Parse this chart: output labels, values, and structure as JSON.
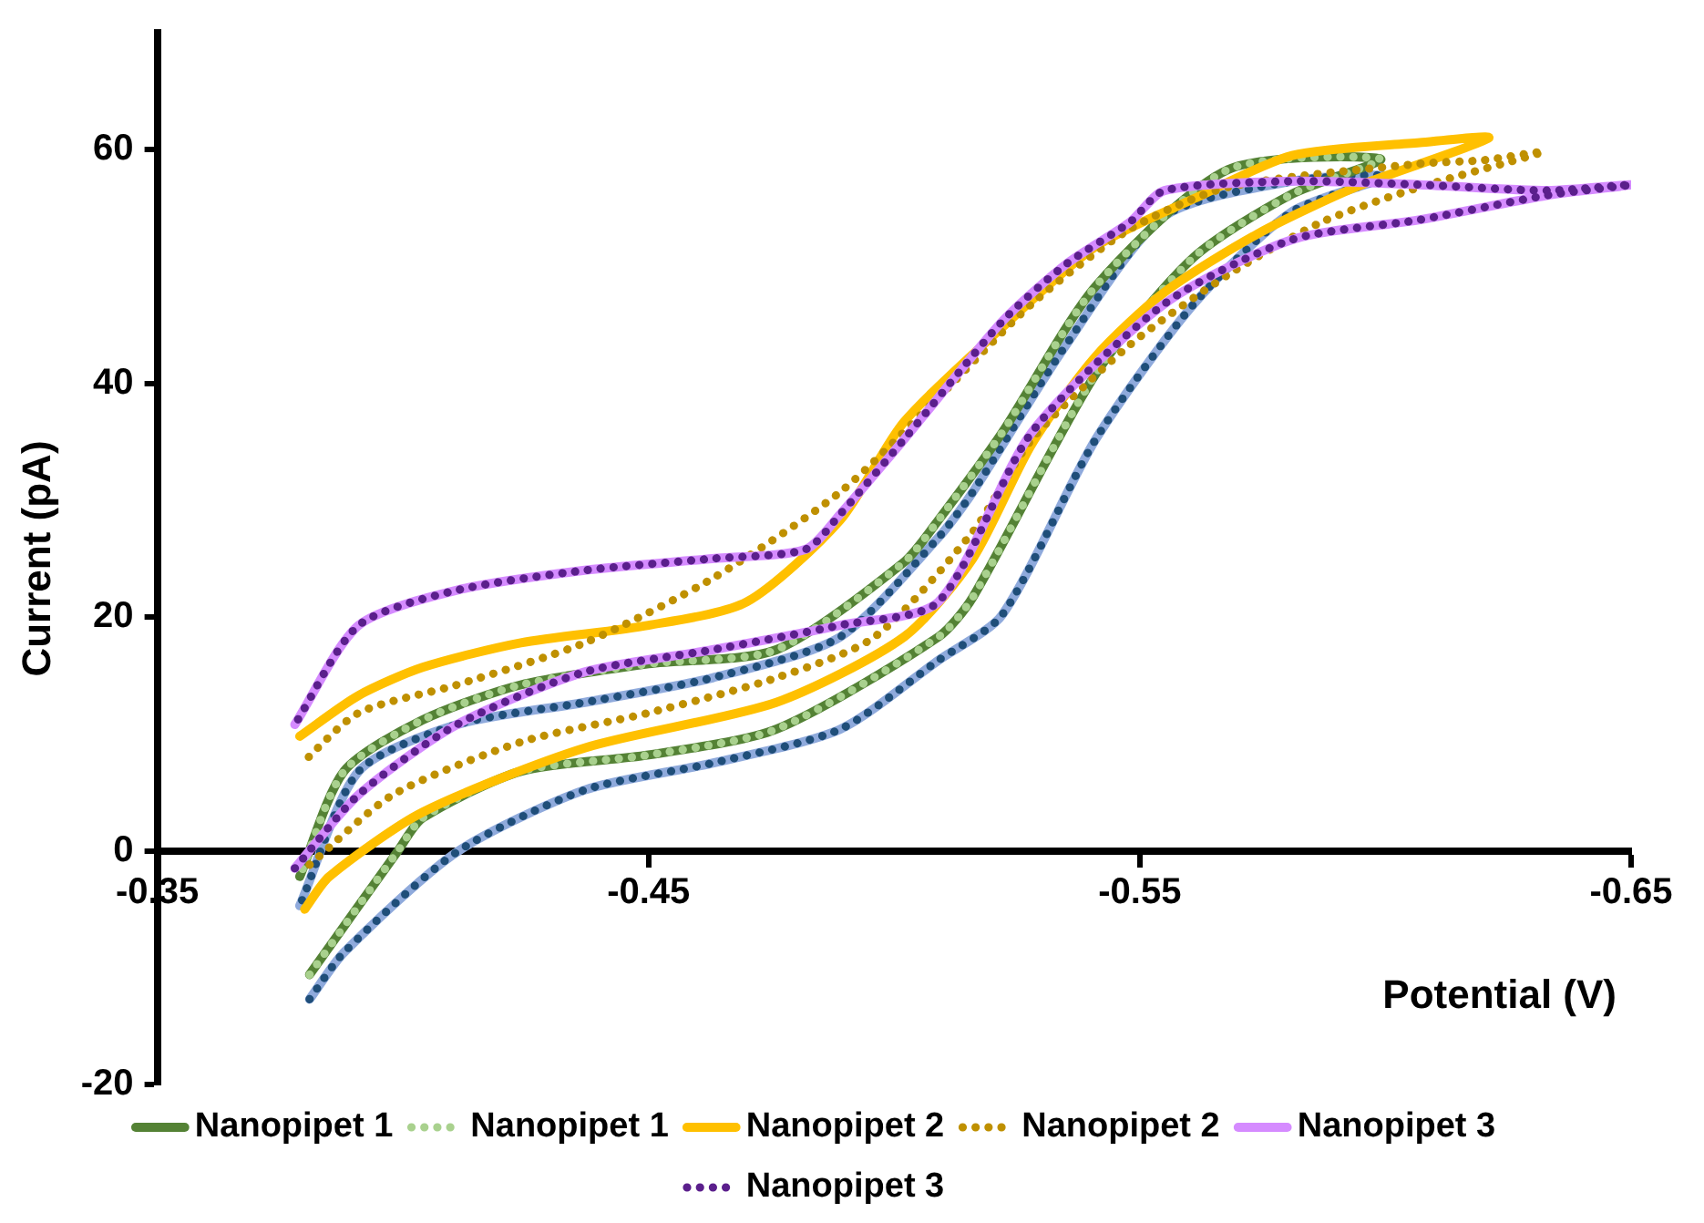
{
  "chart_data": {
    "type": "line",
    "xlabel": "Potential (V)",
    "ylabel": "Current (pA)",
    "xlim": [
      -0.35,
      -0.65
    ],
    "xticks": [
      -0.35,
      -0.45,
      -0.55,
      -0.65
    ],
    "ylim": [
      -20,
      70
    ],
    "yticks": [
      -20,
      0,
      20,
      40,
      60
    ],
    "grid": false,
    "legend": "bottom",
    "marker": "none",
    "series": [
      {
        "color": "#8faadc",
        "line_style": "solid",
        "x": [
          -0.381,
          -0.388,
          -0.411,
          -0.437,
          -0.463,
          -0.489,
          -0.509,
          -0.522,
          -0.541,
          -0.561,
          -0.581,
          -0.6,
          -0.581,
          -0.555,
          -0.535,
          -0.516,
          -0.509,
          -0.489,
          -0.463,
          -0.437,
          -0.411,
          -0.391,
          -0.379
        ],
        "values": [
          -12.7,
          -8.7,
          -0.1,
          5.2,
          7.5,
          10.4,
          16.3,
          20.2,
          35.2,
          46.8,
          54.7,
          57.7,
          57.3,
          54.3,
          43.3,
          30.7,
          26.8,
          18.3,
          14.8,
          12.7,
          10.8,
          6.8,
          -4.7
        ]
      },
      {
        "color": "#1f4e79",
        "line_style": "dotted",
        "x": [
          -0.381,
          -0.388,
          -0.411,
          -0.437,
          -0.463,
          -0.489,
          -0.509,
          -0.522,
          -0.541,
          -0.561,
          -0.581,
          -0.6,
          -0.581,
          -0.555,
          -0.535,
          -0.516,
          -0.509,
          -0.489,
          -0.463,
          -0.437,
          -0.411,
          -0.391,
          -0.379
        ],
        "values": [
          -12.7,
          -8.7,
          -0.1,
          5.2,
          7.5,
          10.4,
          16.3,
          20.2,
          35.2,
          46.8,
          54.7,
          57.7,
          57.3,
          54.3,
          43.3,
          30.7,
          26.8,
          18.3,
          14.8,
          12.7,
          10.8,
          6.8,
          -4.7
        ]
      },
      {
        "name": "Nanopipet 1",
        "color": "#548235",
        "line_style": "solid",
        "x": [
          -0.381,
          -0.399,
          -0.404,
          -0.424,
          -0.45,
          -0.476,
          -0.509,
          -0.516,
          -0.541,
          -0.561,
          -0.581,
          -0.599,
          -0.568,
          -0.541,
          -0.522,
          -0.509,
          -0.502,
          -0.476,
          -0.45,
          -0.424,
          -0.404,
          -0.388,
          -0.379
        ],
        "values": [
          -10.6,
          0,
          2.8,
          6.8,
          8.2,
          10.4,
          18.3,
          21.7,
          40.8,
          50.8,
          56.2,
          59.2,
          58.3,
          48.3,
          35.8,
          28.3,
          24.7,
          17.2,
          16.0,
          14.2,
          11.2,
          6.8,
          -2.2
        ]
      },
      {
        "name": "Nanopipet 1",
        "color": "#a9d18e",
        "line_style": "dotted",
        "x": [
          -0.381,
          -0.399,
          -0.404,
          -0.424,
          -0.45,
          -0.476,
          -0.509,
          -0.516,
          -0.541,
          -0.561,
          -0.581,
          -0.599,
          -0.568,
          -0.541,
          -0.522,
          -0.509,
          -0.502,
          -0.476,
          -0.45,
          -0.424,
          -0.404,
          -0.388,
          -0.379
        ],
        "values": [
          -10.6,
          0,
          2.8,
          6.8,
          8.2,
          10.4,
          18.3,
          21.7,
          40.8,
          50.8,
          56.2,
          59.2,
          58.3,
          48.3,
          35.8,
          28.3,
          24.7,
          17.2,
          16.0,
          14.2,
          11.2,
          6.8,
          -2.2
        ]
      },
      {
        "name": "Nanopipet 2",
        "color": "#ffc000",
        "line_style": "solid",
        "x": [
          -0.38,
          -0.385,
          -0.404,
          -0.437,
          -0.476,
          -0.502,
          -0.516,
          -0.528,
          -0.541,
          -0.555,
          -0.574,
          -0.594,
          -0.621,
          -0.607,
          -0.581,
          -0.561,
          -0.541,
          -0.522,
          -0.502,
          -0.489,
          -0.47,
          -0.45,
          -0.424,
          -0.404,
          -0.391,
          -0.379
        ],
        "values": [
          -5,
          -2.2,
          3.3,
          8.8,
          12.7,
          18.3,
          25.0,
          34.8,
          42.3,
          47.8,
          52.8,
          56.8,
          61.0,
          60.6,
          59.5,
          55.8,
          51.7,
          44.8,
          36.7,
          28.3,
          21.3,
          19.3,
          17.8,
          15.7,
          13.3,
          9.8
        ]
      },
      {
        "name": "Nanopipet 2",
        "color": "#bf9000",
        "line_style": "dotted",
        "x": [
          -0.381,
          -0.398,
          -0.424,
          -0.45,
          -0.476,
          -0.496,
          -0.516,
          -0.528,
          -0.548,
          -0.568,
          -0.587,
          -0.607,
          -0.632,
          -0.62,
          -0.607,
          -0.568,
          -0.548,
          -0.528,
          -0.509,
          -0.489,
          -0.463,
          -0.437,
          -0.411,
          -0.391,
          -0.379
        ],
        "values": [
          -1.2,
          4.8,
          9.3,
          11.8,
          14.8,
          18.3,
          27.3,
          35.2,
          43.3,
          49.3,
          53.8,
          56.8,
          59.8,
          59.1,
          58.8,
          56.8,
          53.2,
          46.8,
          38.8,
          30.7,
          23.3,
          17.8,
          14.2,
          11.8,
          7.3
        ]
      },
      {
        "name": "Nanopipet 3",
        "color": "#d58bff",
        "line_style": "solid",
        "x": [
          -0.378,
          -0.391,
          -0.411,
          -0.437,
          -0.463,
          -0.489,
          -0.509,
          -0.528,
          -0.555,
          -0.581,
          -0.607,
          -0.633,
          -0.65,
          -0.633,
          -0.607,
          -0.581,
          -0.555,
          -0.548,
          -0.535,
          -0.522,
          -0.502,
          -0.489,
          -0.482,
          -0.463,
          -0.437,
          -0.411,
          -0.391,
          -0.378
        ],
        "values": [
          -1.5,
          4.8,
          10.8,
          15.3,
          17.2,
          19.3,
          21.3,
          35.8,
          46.8,
          52.3,
          54.0,
          56.1,
          57.0,
          56.5,
          57.0,
          57.3,
          56.5,
          53.8,
          50.2,
          45.3,
          35.2,
          28.8,
          25.8,
          25.0,
          24.0,
          22.3,
          19.3,
          10.8
        ]
      },
      {
        "name": "Nanopipet 3",
        "color": "#5b1f8c",
        "line_style": "dotted",
        "x": [
          -0.378,
          -0.391,
          -0.411,
          -0.437,
          -0.463,
          -0.489,
          -0.509,
          -0.528,
          -0.555,
          -0.581,
          -0.607,
          -0.633,
          -0.65,
          -0.633,
          -0.607,
          -0.581,
          -0.555,
          -0.548,
          -0.535,
          -0.522,
          -0.502,
          -0.489,
          -0.482,
          -0.463,
          -0.437,
          -0.411,
          -0.391,
          -0.378
        ],
        "values": [
          -1.5,
          4.8,
          10.8,
          15.3,
          17.2,
          19.3,
          21.3,
          35.8,
          46.8,
          52.3,
          54.0,
          56.1,
          57.0,
          56.5,
          57.0,
          57.3,
          56.5,
          53.8,
          50.2,
          45.3,
          35.2,
          28.8,
          25.8,
          25.0,
          24.0,
          22.3,
          19.3,
          10.8
        ]
      }
    ]
  }
}
